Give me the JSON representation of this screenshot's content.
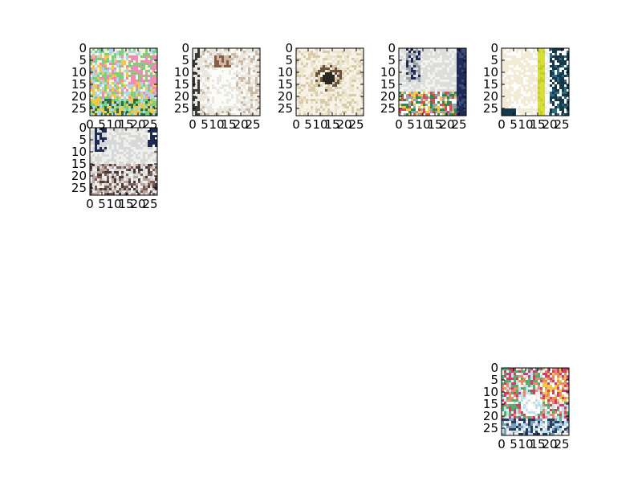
{
  "chart_data": [
    {
      "type": "heatmap",
      "content": "colorful illustrated scene with flowers",
      "image_size": [
        28,
        28
      ],
      "xlim": [
        0,
        28
      ],
      "ylim": [
        28,
        0
      ],
      "xticks": [
        "0",
        "5",
        "10",
        "15",
        "20",
        "25"
      ],
      "yticks": [
        "0",
        "5",
        "10",
        "15",
        "20",
        "25"
      ],
      "palette": {
        "bg": "#a9d8ec",
        "mid": "#7ccf7c",
        "accent": "#f28ab8",
        "dark": "#2f6b3c",
        "light": "#f7f3d8"
      }
    },
    {
      "type": "heatmap",
      "content": "person in white dress, pale background",
      "image_size": [
        28,
        28
      ],
      "xlim": [
        0,
        28
      ],
      "ylim": [
        28,
        0
      ],
      "xticks": [
        "0",
        "5",
        "10",
        "15",
        "20",
        "25"
      ],
      "yticks": [
        "0",
        "5",
        "10",
        "15",
        "20",
        "25"
      ],
      "palette": {
        "bg": "#e9e7df",
        "mid": "#cdb9a4",
        "accent": "#8a5b45",
        "dark": "#3b3b3b",
        "light": "#fbfbf7"
      }
    },
    {
      "type": "heatmap",
      "content": "seated figure in soft beige light",
      "image_size": [
        28,
        28
      ],
      "xlim": [
        0,
        28
      ],
      "ylim": [
        28,
        0
      ],
      "xticks": [
        "0",
        "5",
        "10",
        "15",
        "20",
        "25"
      ],
      "yticks": [
        "0",
        "5",
        "10",
        "15",
        "20",
        "25"
      ],
      "palette": {
        "bg": "#ece4cf",
        "mid": "#d9cba8",
        "accent": "#6a5240",
        "dark": "#2c2622",
        "light": "#f7f3e8"
      }
    },
    {
      "type": "heatmap",
      "content": "album cover with text and flowers at bottom",
      "image_size": [
        28,
        28
      ],
      "xlim": [
        0,
        28
      ],
      "ylim": [
        28,
        0
      ],
      "xticks": [
        "0",
        "5",
        "10",
        "15",
        "20",
        "25"
      ],
      "yticks": [
        "0",
        "5",
        "10",
        "15",
        "20",
        "25"
      ],
      "palette": {
        "bg": "#dcdedc",
        "mid": "#9aa4a8",
        "accent": "#d64a5a",
        "dark": "#1f2a55",
        "light": "#f2f2f0"
      }
    },
    {
      "type": "heatmap",
      "content": "vertical stripes cream, yellow, teal",
      "image_size": [
        28,
        28
      ],
      "xlim": [
        0,
        28
      ],
      "ylim": [
        28,
        0
      ],
      "xticks": [
        "0",
        "5",
        "10",
        "15",
        "20",
        "25"
      ],
      "yticks": [
        "0",
        "5",
        "10",
        "15",
        "20",
        "25"
      ],
      "palette": {
        "bg": "#f2ecd6",
        "mid": "#d7de3b",
        "accent": "#2c6b80",
        "dark": "#15394a",
        "light": "#ffffff"
      }
    },
    {
      "type": "heatmap",
      "content": "grey sky with text, crowd at bottom",
      "image_size": [
        28,
        28
      ],
      "xlim": [
        0,
        28
      ],
      "ylim": [
        28,
        0
      ],
      "xticks": [
        "0",
        "5",
        "10",
        "15",
        "20",
        "25"
      ],
      "yticks": [
        "0",
        "5",
        "10",
        "15",
        "20",
        "25"
      ],
      "palette": {
        "bg": "#d7d9d8",
        "mid": "#b9a39b",
        "accent": "#7a5a55",
        "dark": "#1c2a55",
        "light": "#efefec"
      }
    },
    {
      "type": "heatmap",
      "content": "figure with bright flowers and sky",
      "image_size": [
        28,
        28
      ],
      "xlim": [
        0,
        28
      ],
      "ylim": [
        28,
        0
      ],
      "xticks": [
        "0",
        "5",
        "10",
        "15",
        "20",
        "25"
      ],
      "yticks": [
        "0",
        "5",
        "10",
        "15",
        "20",
        "25"
      ],
      "palette": {
        "bg": "#bfe0ef",
        "mid": "#e98a6a",
        "accent": "#d23c6e",
        "dark": "#2a3c66",
        "light": "#f4f2ea"
      }
    }
  ]
}
